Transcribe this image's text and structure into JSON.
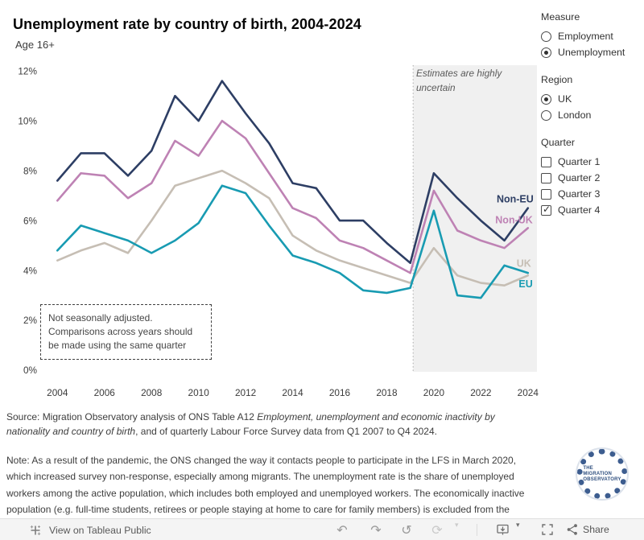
{
  "title": "Unemployment rate by country of birth, 2004-2024",
  "subtitle": "Age 16+",
  "chart_data": {
    "type": "line",
    "x": [
      2004,
      2005,
      2006,
      2007,
      2008,
      2009,
      2010,
      2011,
      2012,
      2013,
      2014,
      2015,
      2016,
      2017,
      2018,
      2019,
      2020,
      2021,
      2022,
      2023,
      2024
    ],
    "series": [
      {
        "name": "Non-EU",
        "color": "#2d3e64",
        "values": [
          7.6,
          8.7,
          8.7,
          7.8,
          8.8,
          11.0,
          10.0,
          11.6,
          10.3,
          9.1,
          7.5,
          7.3,
          6.0,
          6.0,
          5.1,
          4.3,
          7.9,
          6.9,
          6.0,
          5.2,
          6.5
        ]
      },
      {
        "name": "Non-UK",
        "color": "#be82b4",
        "values": [
          6.8,
          7.9,
          7.8,
          6.9,
          7.5,
          9.2,
          8.6,
          10.0,
          9.3,
          7.9,
          6.5,
          6.1,
          5.2,
          4.9,
          4.4,
          3.9,
          7.2,
          5.6,
          5.2,
          4.9,
          5.7
        ]
      },
      {
        "name": "UK",
        "color": "#c6beb4",
        "values": [
          4.4,
          4.8,
          5.1,
          4.7,
          6.0,
          7.4,
          7.7,
          8.0,
          7.5,
          6.9,
          5.4,
          4.8,
          4.4,
          4.1,
          3.8,
          3.5,
          4.9,
          3.8,
          3.5,
          3.4,
          3.8
        ]
      },
      {
        "name": "EU",
        "color": "#189bb2",
        "values": [
          4.8,
          5.8,
          5.5,
          5.2,
          4.7,
          5.2,
          5.9,
          7.4,
          7.1,
          5.8,
          4.6,
          4.3,
          3.9,
          3.2,
          3.1,
          3.3,
          6.4,
          3.0,
          2.9,
          4.2,
          3.9
        ]
      }
    ],
    "title": "Unemployment rate by country of birth, 2004-2024",
    "xlabel": "",
    "ylabel": "",
    "ylim": [
      0,
      12
    ],
    "yticks": [
      0,
      2,
      4,
      6,
      8,
      10,
      12
    ],
    "ytick_suffix": "%",
    "xticks": [
      2004,
      2006,
      2008,
      2010,
      2012,
      2014,
      2016,
      2018,
      2020,
      2022,
      2024
    ],
    "grid": false,
    "legend": "line-end labels",
    "uncertain_region": {
      "from_year": 2019.12,
      "fill": "#f0f0f0",
      "label": "Estimates are highly uncertain"
    },
    "annotation": {
      "lines": [
        "Not seasonally adjusted.",
        "Comparisons across years should",
        "be made using the same quarter"
      ]
    }
  },
  "filters": {
    "measure": {
      "label": "Measure",
      "type": "radio",
      "options": [
        {
          "label": "Employment",
          "selected": false
        },
        {
          "label": "Unemployment",
          "selected": true
        }
      ]
    },
    "region": {
      "label": "Region",
      "type": "radio",
      "options": [
        {
          "label": "UK",
          "selected": true
        },
        {
          "label": "London",
          "selected": false
        }
      ]
    },
    "quarter": {
      "label": "Quarter",
      "type": "checkbox",
      "options": [
        {
          "label": "Quarter 1",
          "checked": false
        },
        {
          "label": "Quarter 2",
          "checked": false
        },
        {
          "label": "Quarter 3",
          "checked": false
        },
        {
          "label": "Quarter 4",
          "checked": true
        }
      ]
    }
  },
  "source": {
    "line1_normal": "Source: Migration Observatory analysis of ONS Table A12 ",
    "line1_italic": "Employment, unemployment and economic inactivity by",
    "line2_italic": "nationality and country of birth",
    "line2_normal": ", and of quarterly Labour Force Survey data from Q1 2007 to Q4 2024."
  },
  "note": {
    "lines": [
      "Note: As a result of the pandemic, the ONS changed the way it contacts people to participate in the LFS in March 2020,",
      "which increased survey non-response, especially among migrants. The unemployment rate is the share of unemployed",
      "workers among the active population, which includes both employed and unemployed workers. The economically inactive",
      "population (e.g. full-time students, retirees or people staying at home to care for family members) is excluded from the"
    ]
  },
  "logo": {
    "lines": [
      "THE",
      "MIGRATION",
      "OBSERVATORY"
    ]
  },
  "toolbar": {
    "view_text": "View on Tableau Public",
    "share_label": "Share"
  },
  "icons": {
    "undo": "↶",
    "redo": "↷",
    "revert": "↺",
    "refresh": "⟳",
    "caret": "▾",
    "check": "✓"
  }
}
